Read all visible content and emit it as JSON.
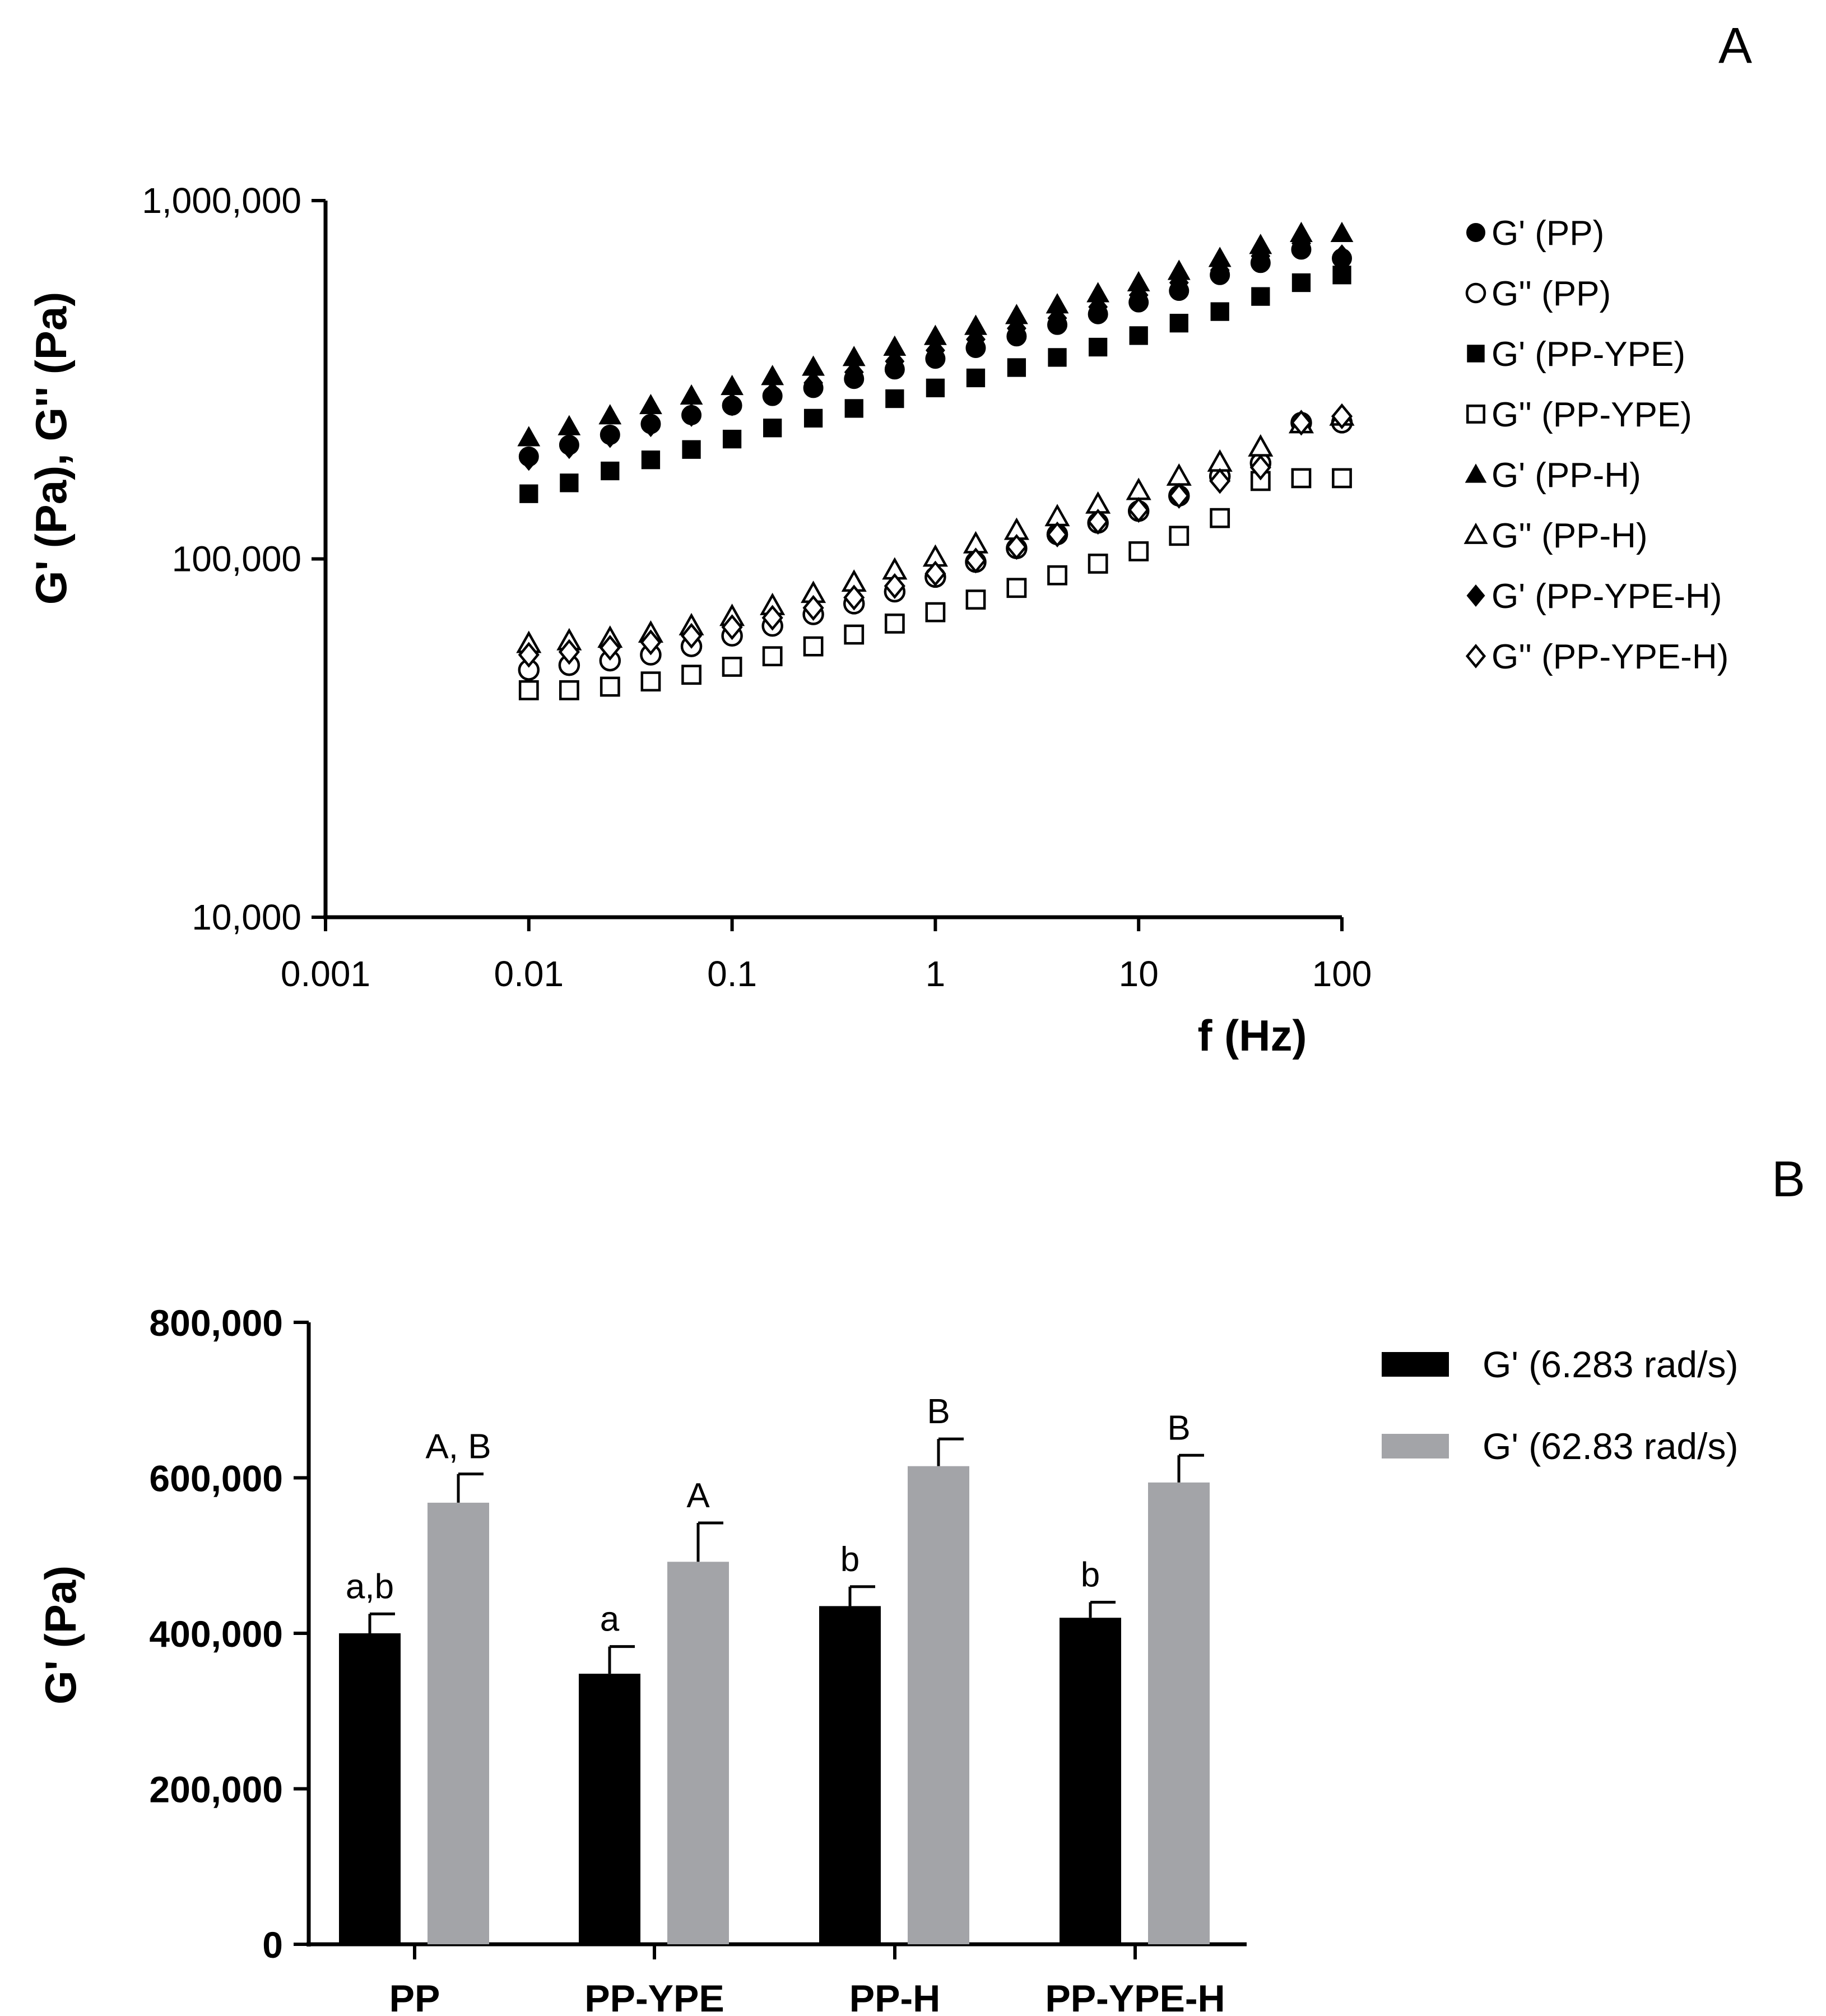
{
  "chart_data": [
    {
      "panel_label": "A",
      "type": "scatter",
      "xscale": "log",
      "yscale": "log",
      "xlabel": "f (Hz)",
      "ylabel": "G' (Pa), G'' (Pa)",
      "xlim": [
        0.001,
        100
      ],
      "ylim": [
        10000,
        1000000
      ],
      "xticks": [
        {
          "value": 0.001,
          "label": "0.001"
        },
        {
          "value": 0.01,
          "label": "0.01"
        },
        {
          "value": 0.1,
          "label": "0.1"
        },
        {
          "value": 1,
          "label": "1"
        },
        {
          "value": 10,
          "label": "10"
        },
        {
          "value": 100,
          "label": "100"
        }
      ],
      "yticks": [
        {
          "value": 10000,
          "label": "10,000"
        },
        {
          "value": 100000,
          "label": "100,000"
        },
        {
          "value": 1000000,
          "label": "1,000,000"
        }
      ],
      "legend_position": "right",
      "x": [
        0.01,
        0.0158,
        0.0251,
        0.0398,
        0.0631,
        0.1,
        0.158,
        0.251,
        0.398,
        0.631,
        1,
        1.58,
        2.51,
        3.98,
        6.31,
        10,
        15.8,
        25.1,
        39.8,
        63.1,
        100
      ],
      "series": [
        {
          "name": "G' (PP)",
          "marker": "circle-filled",
          "values": [
            193000,
            208000,
            222000,
            238000,
            252000,
            268000,
            285000,
            300000,
            318000,
            338000,
            362000,
            388000,
            418000,
            450000,
            482000,
            520000,
            560000,
            620000,
            670000,
            730000,
            690000
          ]
        },
        {
          "name": "G'' (PP)",
          "marker": "circle-open",
          "values": [
            49000,
            50500,
            52000,
            54000,
            57000,
            61000,
            65000,
            70000,
            75000,
            81000,
            89000,
            98000,
            107000,
            117000,
            126000,
            136000,
            150000,
            170000,
            185000,
            240000,
            240000
          ]
        },
        {
          "name": "G' (PP-YPE)",
          "marker": "square-filled",
          "values": [
            152000,
            163000,
            176000,
            189000,
            202000,
            216000,
            232000,
            247000,
            263000,
            280000,
            300000,
            320000,
            342000,
            365000,
            390000,
            420000,
            455000,
            490000,
            540000,
            590000,
            620000
          ]
        },
        {
          "name": "G'' (PP-YPE)",
          "marker": "square-open",
          "values": [
            43000,
            43000,
            44000,
            45500,
            47500,
            50000,
            53500,
            57000,
            61500,
            66000,
            71000,
            77000,
            83000,
            90000,
            97000,
            105000,
            116000,
            130000,
            165000,
            168000,
            168000
          ]
        },
        {
          "name": "G' (PP-H)",
          "marker": "triangle-filled",
          "values": [
            218000,
            234000,
            251000,
            268000,
            285000,
            303000,
            323000,
            343000,
            365000,
            390000,
            418000,
            446000,
            478000,
            512000,
            550000,
            590000,
            635000,
            690000,
            750000,
            810000,
            810000
          ]
        },
        {
          "name": "G'' (PP-H)",
          "marker": "triangle-open",
          "values": [
            58000,
            59000,
            60000,
            62000,
            65000,
            69000,
            74000,
            80000,
            86000,
            93000,
            101000,
            110000,
            120000,
            131000,
            142000,
            155000,
            170000,
            186000,
            205000,
            238000,
            250000
          ]
        },
        {
          "name": "G' (PP-YPE-H)",
          "marker": "diamond-filled",
          "values": [
            190000,
            205000,
            220000,
            236000,
            252000,
            270000,
            290000,
            310000,
            332000,
            356000,
            382000,
            410000,
            440000,
            470000,
            505000,
            545000,
            590000,
            640000,
            700000,
            760000,
            700000
          ]
        },
        {
          "name": "G'' (PP-YPE-H)",
          "marker": "diamond-open",
          "values": [
            54000,
            55000,
            56500,
            58500,
            61000,
            64500,
            68500,
            73000,
            78000,
            84000,
            91000,
            99000,
            108000,
            117000,
            127000,
            137000,
            150000,
            165000,
            180000,
            240000,
            250000
          ]
        }
      ]
    },
    {
      "panel_label": "B",
      "type": "bar",
      "ylabel": "G' (Pa)",
      "ylim": [
        0,
        800000
      ],
      "yticks": [
        {
          "value": 0,
          "label": "0"
        },
        {
          "value": 200000,
          "label": "200,000"
        },
        {
          "value": 400000,
          "label": "400,000"
        },
        {
          "value": 600000,
          "label": "600,000"
        },
        {
          "value": 800000,
          "label": "800,000"
        }
      ],
      "categories": [
        "PP",
        "PP-YPE",
        "PP-H",
        "PP-YPE-H"
      ],
      "legend_position": "top-right",
      "series": [
        {
          "name": "G' (6.283 rad/s)",
          "color": "#000000",
          "values": [
            400000,
            348000,
            435000,
            420000
          ],
          "errors": [
            25000,
            35000,
            25000,
            20000
          ],
          "annotations": [
            "a,b",
            "a",
            "b",
            "b"
          ]
        },
        {
          "name": "G' (62.83 rad/s)",
          "color": "#a3a4a8",
          "values": [
            568000,
            492000,
            615000,
            594000
          ],
          "errors": [
            37000,
            50000,
            35000,
            35000
          ],
          "annotations": [
            "A, B",
            "A",
            "B",
            "B"
          ]
        }
      ]
    }
  ]
}
